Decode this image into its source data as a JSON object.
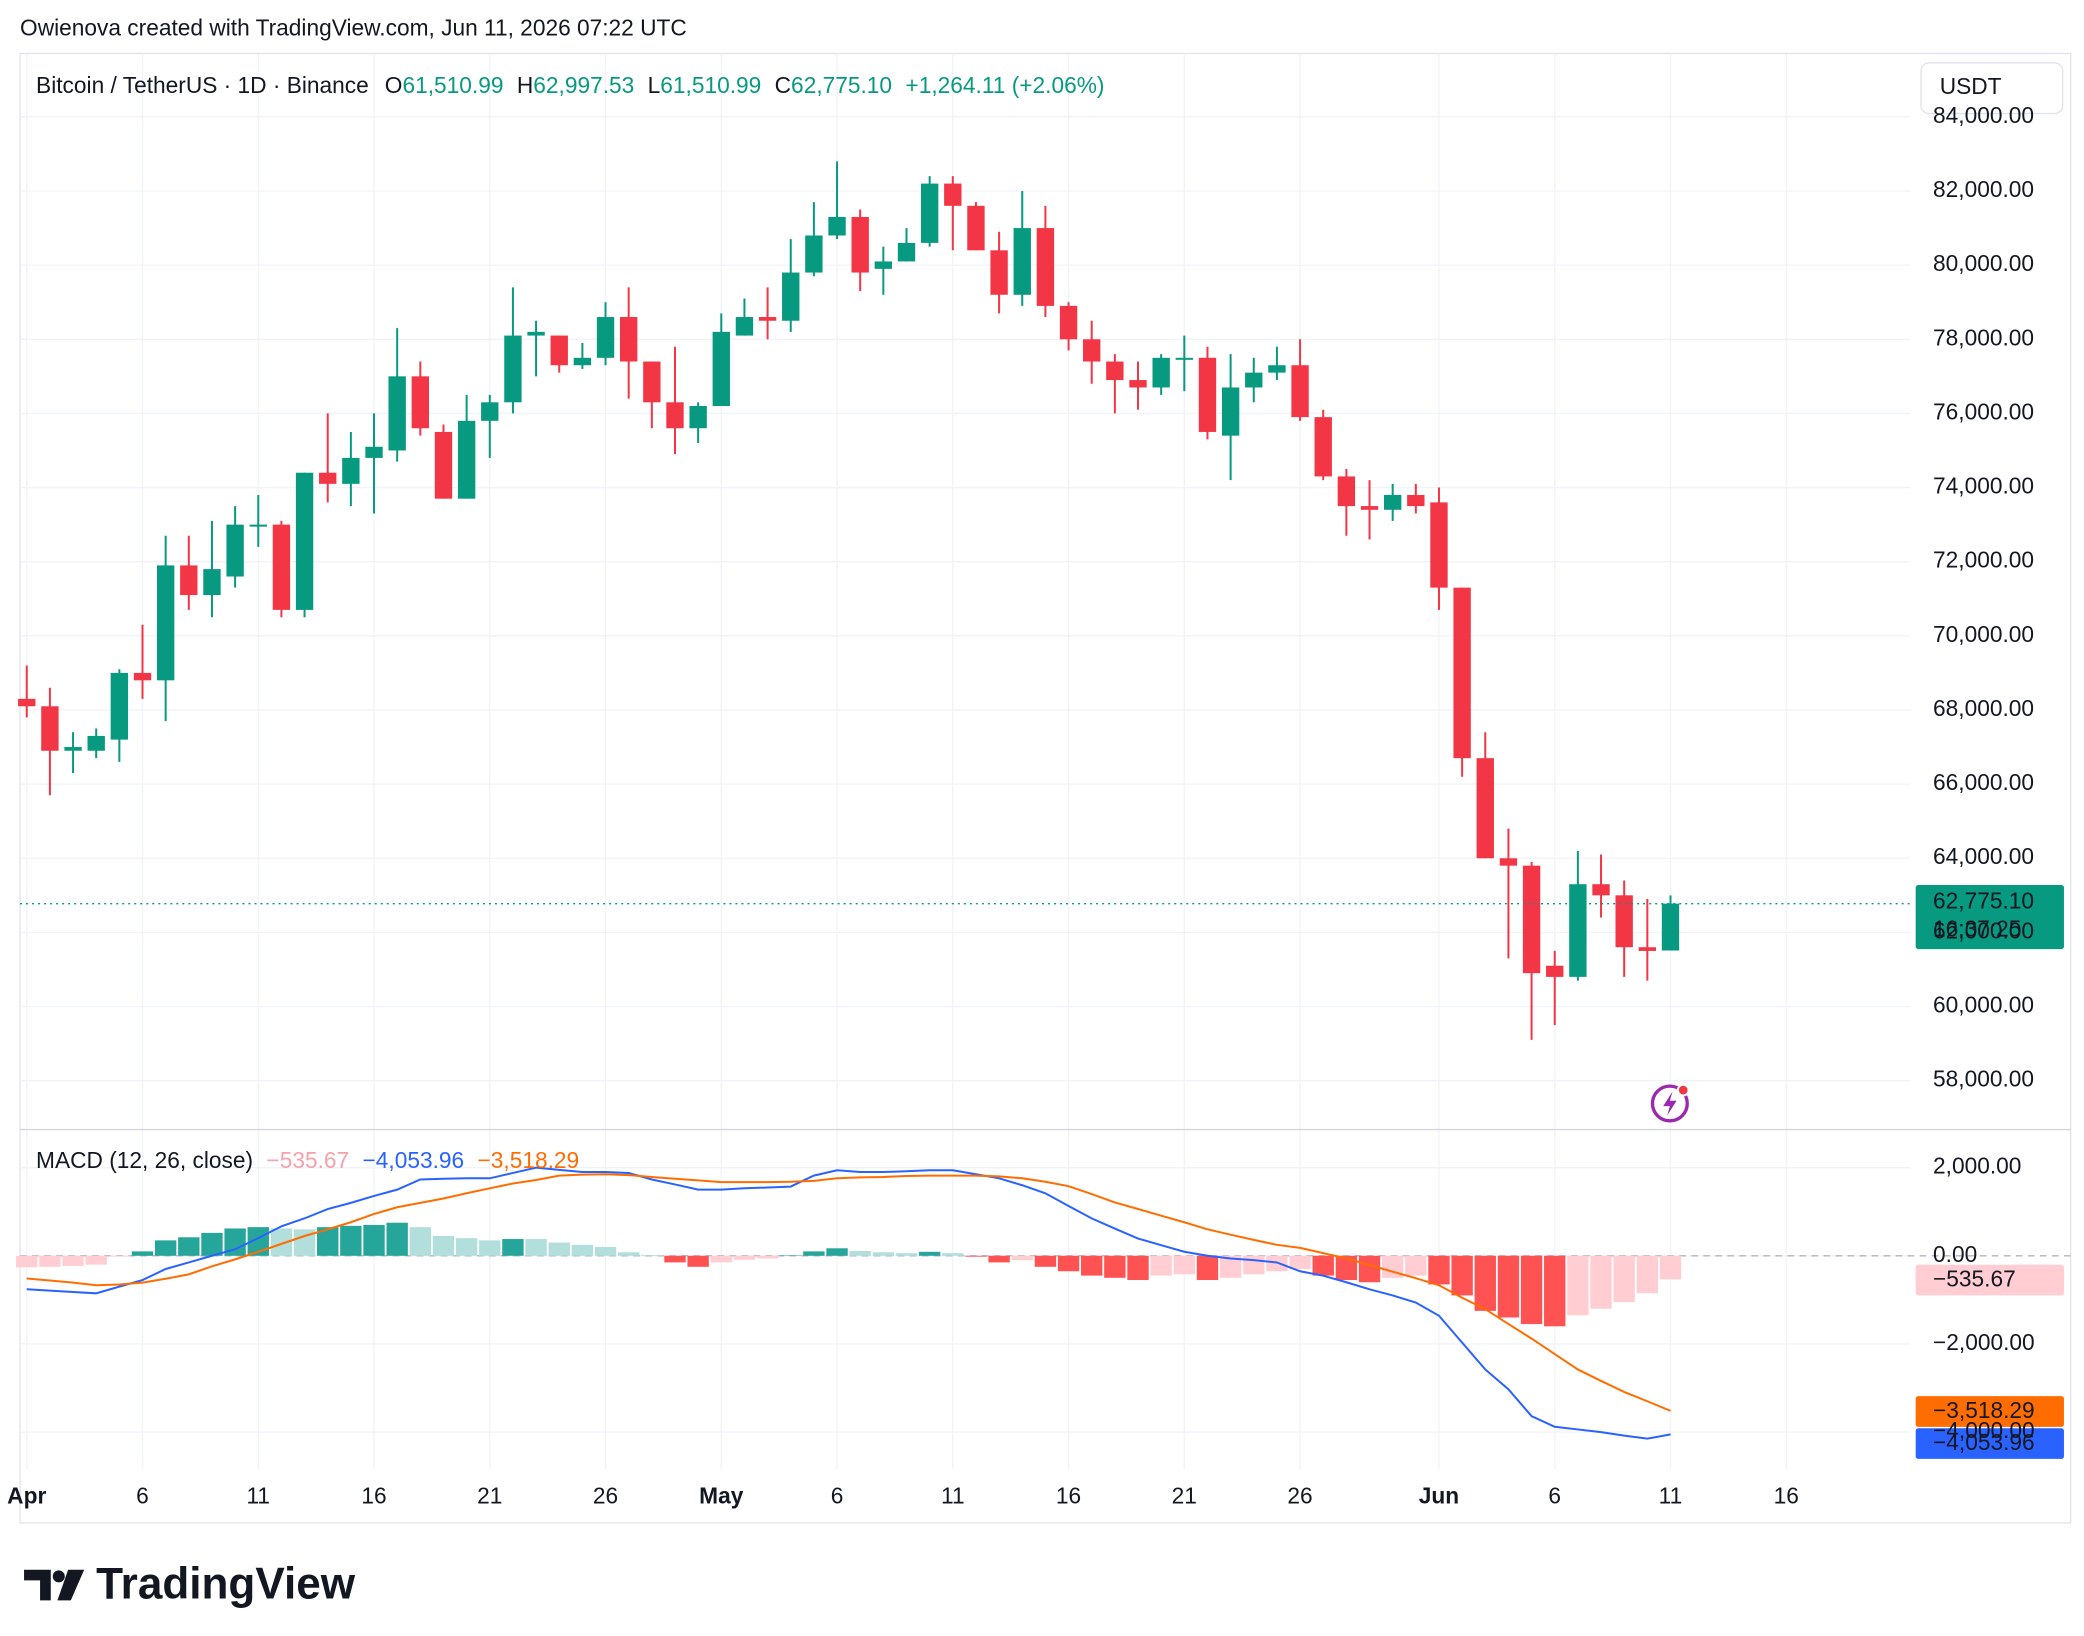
{
  "header": {
    "credit": "Owienova created with TradingView.com, Jun 11, 2026 07:22 UTC"
  },
  "legend": {
    "symbol": "Bitcoin / TetherUS · 1D · Binance",
    "fields": [
      {
        "key": "O",
        "value": "61,510.99"
      },
      {
        "key": "H",
        "value": "62,997.53"
      },
      {
        "key": "L",
        "value": "61,510.99"
      },
      {
        "key": "C",
        "value": "62,775.10"
      }
    ],
    "change": "+1,264.11 (+2.06%)"
  },
  "currency": "USDT",
  "last_price": {
    "label": "62,775.10",
    "countdown": "16:37:25"
  },
  "footer": {
    "brand": "TradingView"
  },
  "chart_data": [
    {
      "type": "candlestick",
      "up_color": "#089981",
      "down_color": "#f23645",
      "grid": true,
      "xlim": [
        -0.29,
        81.36
      ],
      "xticks": [
        {
          "value": 0,
          "label": "Apr"
        },
        {
          "value": 5,
          "label": "6"
        },
        {
          "value": 10,
          "label": "11"
        },
        {
          "value": 15,
          "label": "16"
        },
        {
          "value": 20,
          "label": "21"
        },
        {
          "value": 25,
          "label": "26"
        },
        {
          "value": 30,
          "label": "May"
        },
        {
          "value": 35,
          "label": "6"
        },
        {
          "value": 40,
          "label": "11"
        },
        {
          "value": 45,
          "label": "16"
        },
        {
          "value": 50,
          "label": "21"
        },
        {
          "value": 55,
          "label": "26"
        },
        {
          "value": 61,
          "label": "Jun"
        },
        {
          "value": 66,
          "label": "6"
        },
        {
          "value": 71,
          "label": "11"
        },
        {
          "value": 76,
          "label": "16"
        }
      ],
      "ylim": [
        56700,
        85710
      ],
      "yticks": [
        {
          "value": 58000,
          "label": "58,000.00"
        },
        {
          "value": 60000,
          "label": "60,000.00"
        },
        {
          "value": 62000,
          "label": "62,000.00"
        },
        {
          "value": 64000,
          "label": "64,000.00"
        },
        {
          "value": 66000,
          "label": "66,000.00"
        },
        {
          "value": 68000,
          "label": "68,000.00"
        },
        {
          "value": 70000,
          "label": "70,000.00"
        },
        {
          "value": 72000,
          "label": "72,000.00"
        },
        {
          "value": 74000,
          "label": "74,000.00"
        },
        {
          "value": 76000,
          "label": "76,000.00"
        },
        {
          "value": 78000,
          "label": "78,000.00"
        },
        {
          "value": 80000,
          "label": "80,000.00"
        },
        {
          "value": 82000,
          "label": "82,000.00"
        },
        {
          "value": 84000,
          "label": "84,000.00"
        }
      ],
      "open": [
        68300,
        68100,
        66900,
        66900,
        67200,
        69000,
        68800,
        71900,
        71100,
        71600,
        73000,
        73000,
        70700,
        74400,
        74100,
        74800,
        75000,
        77000,
        75500,
        73700,
        75800,
        76300,
        78100,
        78100,
        77300,
        77500,
        78600,
        77400,
        76300,
        75600,
        76200,
        78100,
        78600,
        78500,
        79800,
        80800,
        81300,
        79900,
        80100,
        80600,
        82200,
        81600,
        80400,
        79200,
        81000,
        78900,
        78000,
        77400,
        76900,
        76700,
        77500,
        77500,
        75400,
        76700,
        77100,
        77300,
        75900,
        74300,
        73500,
        73400,
        73800,
        73600,
        71300,
        66700,
        64000,
        63800,
        61100,
        60800,
        63300,
        63000,
        61600,
        61510.99
      ],
      "high": [
        69200,
        68600,
        67400,
        67500,
        69100,
        70300,
        72700,
        72700,
        73100,
        73500,
        73800,
        73100,
        74400,
        76000,
        75500,
        76000,
        78300,
        77400,
        75700,
        76500,
        76500,
        79400,
        78500,
        78100,
        77900,
        79000,
        79400,
        77400,
        77800,
        76300,
        78700,
        79100,
        79400,
        80700,
        81700,
        82800,
        81500,
        80500,
        81000,
        82400,
        82400,
        81700,
        80900,
        82000,
        81600,
        79000,
        78500,
        77600,
        77400,
        77600,
        78100,
        77800,
        77600,
        77500,
        77800,
        78000,
        76100,
        74500,
        74200,
        74100,
        74100,
        74000,
        71300,
        67400,
        64800,
        63900,
        61500,
        64200,
        64100,
        63400,
        62900,
        62997.53
      ],
      "low": [
        67800,
        65700,
        66300,
        66700,
        66600,
        68300,
        67700,
        70700,
        70500,
        71300,
        72400,
        70500,
        70500,
        73600,
        73500,
        73300,
        74700,
        75400,
        73700,
        73700,
        74800,
        76000,
        77000,
        77100,
        77200,
        77300,
        76400,
        75600,
        74900,
        75200,
        76200,
        78100,
        78000,
        78200,
        79700,
        80700,
        79300,
        79200,
        80100,
        80500,
        80400,
        80400,
        78700,
        78900,
        78600,
        77700,
        76800,
        76000,
        76100,
        76500,
        76600,
        75300,
        74200,
        76300,
        76900,
        75800,
        74200,
        72700,
        72600,
        73100,
        73300,
        70700,
        66200,
        64000,
        61300,
        59100,
        59500,
        60700,
        62400,
        60800,
        60700,
        61510.99
      ],
      "close": [
        68100,
        66900,
        67000,
        67300,
        69000,
        68800,
        71900,
        71100,
        71800,
        73000,
        73000,
        70700,
        74400,
        74100,
        74800,
        75100,
        77000,
        75600,
        73700,
        75800,
        76300,
        78100,
        78200,
        77300,
        77500,
        78600,
        77400,
        76300,
        75600,
        76200,
        78200,
        78600,
        78500,
        79800,
        80800,
        81300,
        79800,
        80100,
        80600,
        82200,
        81600,
        80400,
        79200,
        81000,
        78900,
        78000,
        77400,
        76900,
        76700,
        77500,
        77500,
        75500,
        76700,
        77100,
        77300,
        75900,
        74300,
        73500,
        73400,
        73800,
        73500,
        71300,
        66700,
        64000,
        63800,
        60900,
        60800,
        63300,
        63000,
        61600,
        61500,
        62775.1
      ]
    },
    {
      "type": "macd",
      "title": "MACD (12, 26, close)",
      "grid": true,
      "xlim": [
        -0.29,
        81.36
      ],
      "ylim": [
        -4850,
        2850
      ],
      "yticks": [
        {
          "value": -4000,
          "label": "−4,000.00"
        },
        {
          "value": -2000,
          "label": "−2,000.00"
        },
        {
          "value": 0,
          "label": "0.00"
        },
        {
          "value": 2000,
          "label": "2,000.00"
        }
      ],
      "series": [
        {
          "type": "histogram",
          "colors": [
            "#26a69a",
            "#b2dfdb",
            "#ff5252",
            "#ffcdd2"
          ],
          "last_label": "−535.67",
          "values": [
            -260,
            -250,
            -230,
            -200,
            -20,
            100,
            350,
            420,
            520,
            620,
            650,
            620,
            600,
            650,
            680,
            700,
            750,
            650,
            450,
            400,
            350,
            380,
            380,
            300,
            250,
            200,
            80,
            20,
            -150,
            -250,
            -150,
            -90,
            -60,
            10,
            100,
            170,
            110,
            80,
            60,
            90,
            60,
            -20,
            -150,
            -100,
            -250,
            -350,
            -450,
            -500,
            -550,
            -450,
            -420,
            -550,
            -500,
            -420,
            -350,
            -300,
            -450,
            -550,
            -600,
            -500,
            -450,
            -650,
            -900,
            -1250,
            -1400,
            -1550,
            -1600,
            -1350,
            -1200,
            -1050,
            -850,
            -535.67
          ]
        },
        {
          "type": "line",
          "color": "#2962ff",
          "last_label": "−4,053.96",
          "values": [
            -760,
            -790,
            -820,
            -850,
            -700,
            -550,
            -300,
            -150,
            0,
            150,
            400,
            670,
            850,
            1060,
            1200,
            1360,
            1500,
            1730,
            1750,
            1760,
            1760,
            1880,
            2000,
            1950,
            1900,
            1900,
            1880,
            1730,
            1620,
            1500,
            1500,
            1530,
            1550,
            1570,
            1820,
            1940,
            1900,
            1900,
            1920,
            1940,
            1940,
            1850,
            1760,
            1600,
            1420,
            1130,
            850,
            620,
            390,
            240,
            90,
            0,
            -60,
            -100,
            -150,
            -350,
            -450,
            -600,
            -760,
            -900,
            -1060,
            -1360,
            -1970,
            -2580,
            -3030,
            -3640,
            -3880,
            -3940,
            -4000,
            -4080,
            -4150,
            -4053.96
          ]
        },
        {
          "type": "line",
          "color": "#ff6d00",
          "last_label": "−3,518.29",
          "values": [
            -515,
            -560,
            -610,
            -670,
            -650,
            -610,
            -520,
            -420,
            -240,
            -80,
            90,
            270,
            450,
            600,
            760,
            950,
            1100,
            1200,
            1300,
            1420,
            1530,
            1640,
            1720,
            1820,
            1840,
            1850,
            1830,
            1790,
            1750,
            1710,
            1670,
            1670,
            1670,
            1680,
            1700,
            1760,
            1780,
            1790,
            1810,
            1820,
            1820,
            1820,
            1800,
            1760,
            1680,
            1580,
            1400,
            1210,
            1060,
            910,
            760,
            600,
            480,
            360,
            250,
            180,
            60,
            -60,
            -210,
            -360,
            -510,
            -670,
            -950,
            -1210,
            -1550,
            -1880,
            -2230,
            -2580,
            -2840,
            -3090,
            -3300,
            -3518.29
          ]
        }
      ]
    }
  ]
}
